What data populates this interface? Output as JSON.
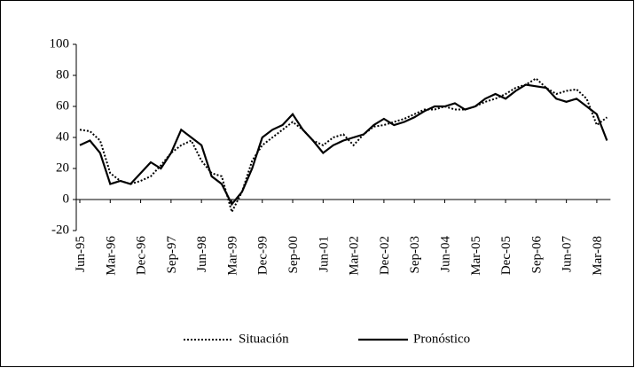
{
  "chart_data": {
    "type": "line",
    "categories": [
      "Jun-95",
      null,
      null,
      "Mar-96",
      null,
      null,
      "Dec-96",
      null,
      null,
      "Sep-97",
      null,
      null,
      "Jun-98",
      null,
      null,
      "Mar-99",
      null,
      null,
      "Dec-99",
      null,
      null,
      "Sep-00",
      null,
      null,
      "Jun-01",
      null,
      null,
      "Mar-02",
      null,
      null,
      "Dec-02",
      null,
      null,
      "Sep-03",
      null,
      null,
      "Jun-04",
      null,
      null,
      "Mar-05",
      null,
      null,
      "Dec-05",
      null,
      null,
      "Sep-06",
      null,
      null,
      "Jun-07",
      null,
      null,
      "Mar-08",
      null
    ],
    "series": [
      {
        "name": "Situación",
        "color": "#000000",
        "dash": "dotted",
        "values": [
          45,
          44,
          38,
          17,
          12,
          10,
          12,
          15,
          22,
          30,
          35,
          38,
          25,
          17,
          15,
          -8,
          5,
          25,
          35,
          40,
          45,
          50,
          45,
          38,
          35,
          40,
          42,
          35,
          42,
          47,
          48,
          50,
          52,
          55,
          58,
          58,
          60,
          58,
          58,
          60,
          63,
          65,
          68,
          72,
          74,
          78,
          72,
          68,
          70,
          71,
          65,
          48,
          53
        ]
      },
      {
        "name": "Pronóstico",
        "color": "#000000",
        "dash": "solid",
        "values": [
          35,
          38,
          30,
          10,
          12,
          10,
          17,
          24,
          20,
          30,
          45,
          40,
          35,
          15,
          10,
          -3,
          5,
          20,
          40,
          45,
          48,
          55,
          45,
          38,
          30,
          35,
          38,
          40,
          42,
          48,
          52,
          48,
          50,
          53,
          57,
          60,
          60,
          62,
          58,
          60,
          65,
          68,
          65,
          70,
          74,
          73,
          72,
          65,
          63,
          65,
          60,
          55,
          38
        ]
      }
    ],
    "ylim": [
      -20,
      100
    ],
    "yticks": [
      -20,
      0,
      20,
      40,
      60,
      80,
      100
    ],
    "legend": "bottom"
  }
}
